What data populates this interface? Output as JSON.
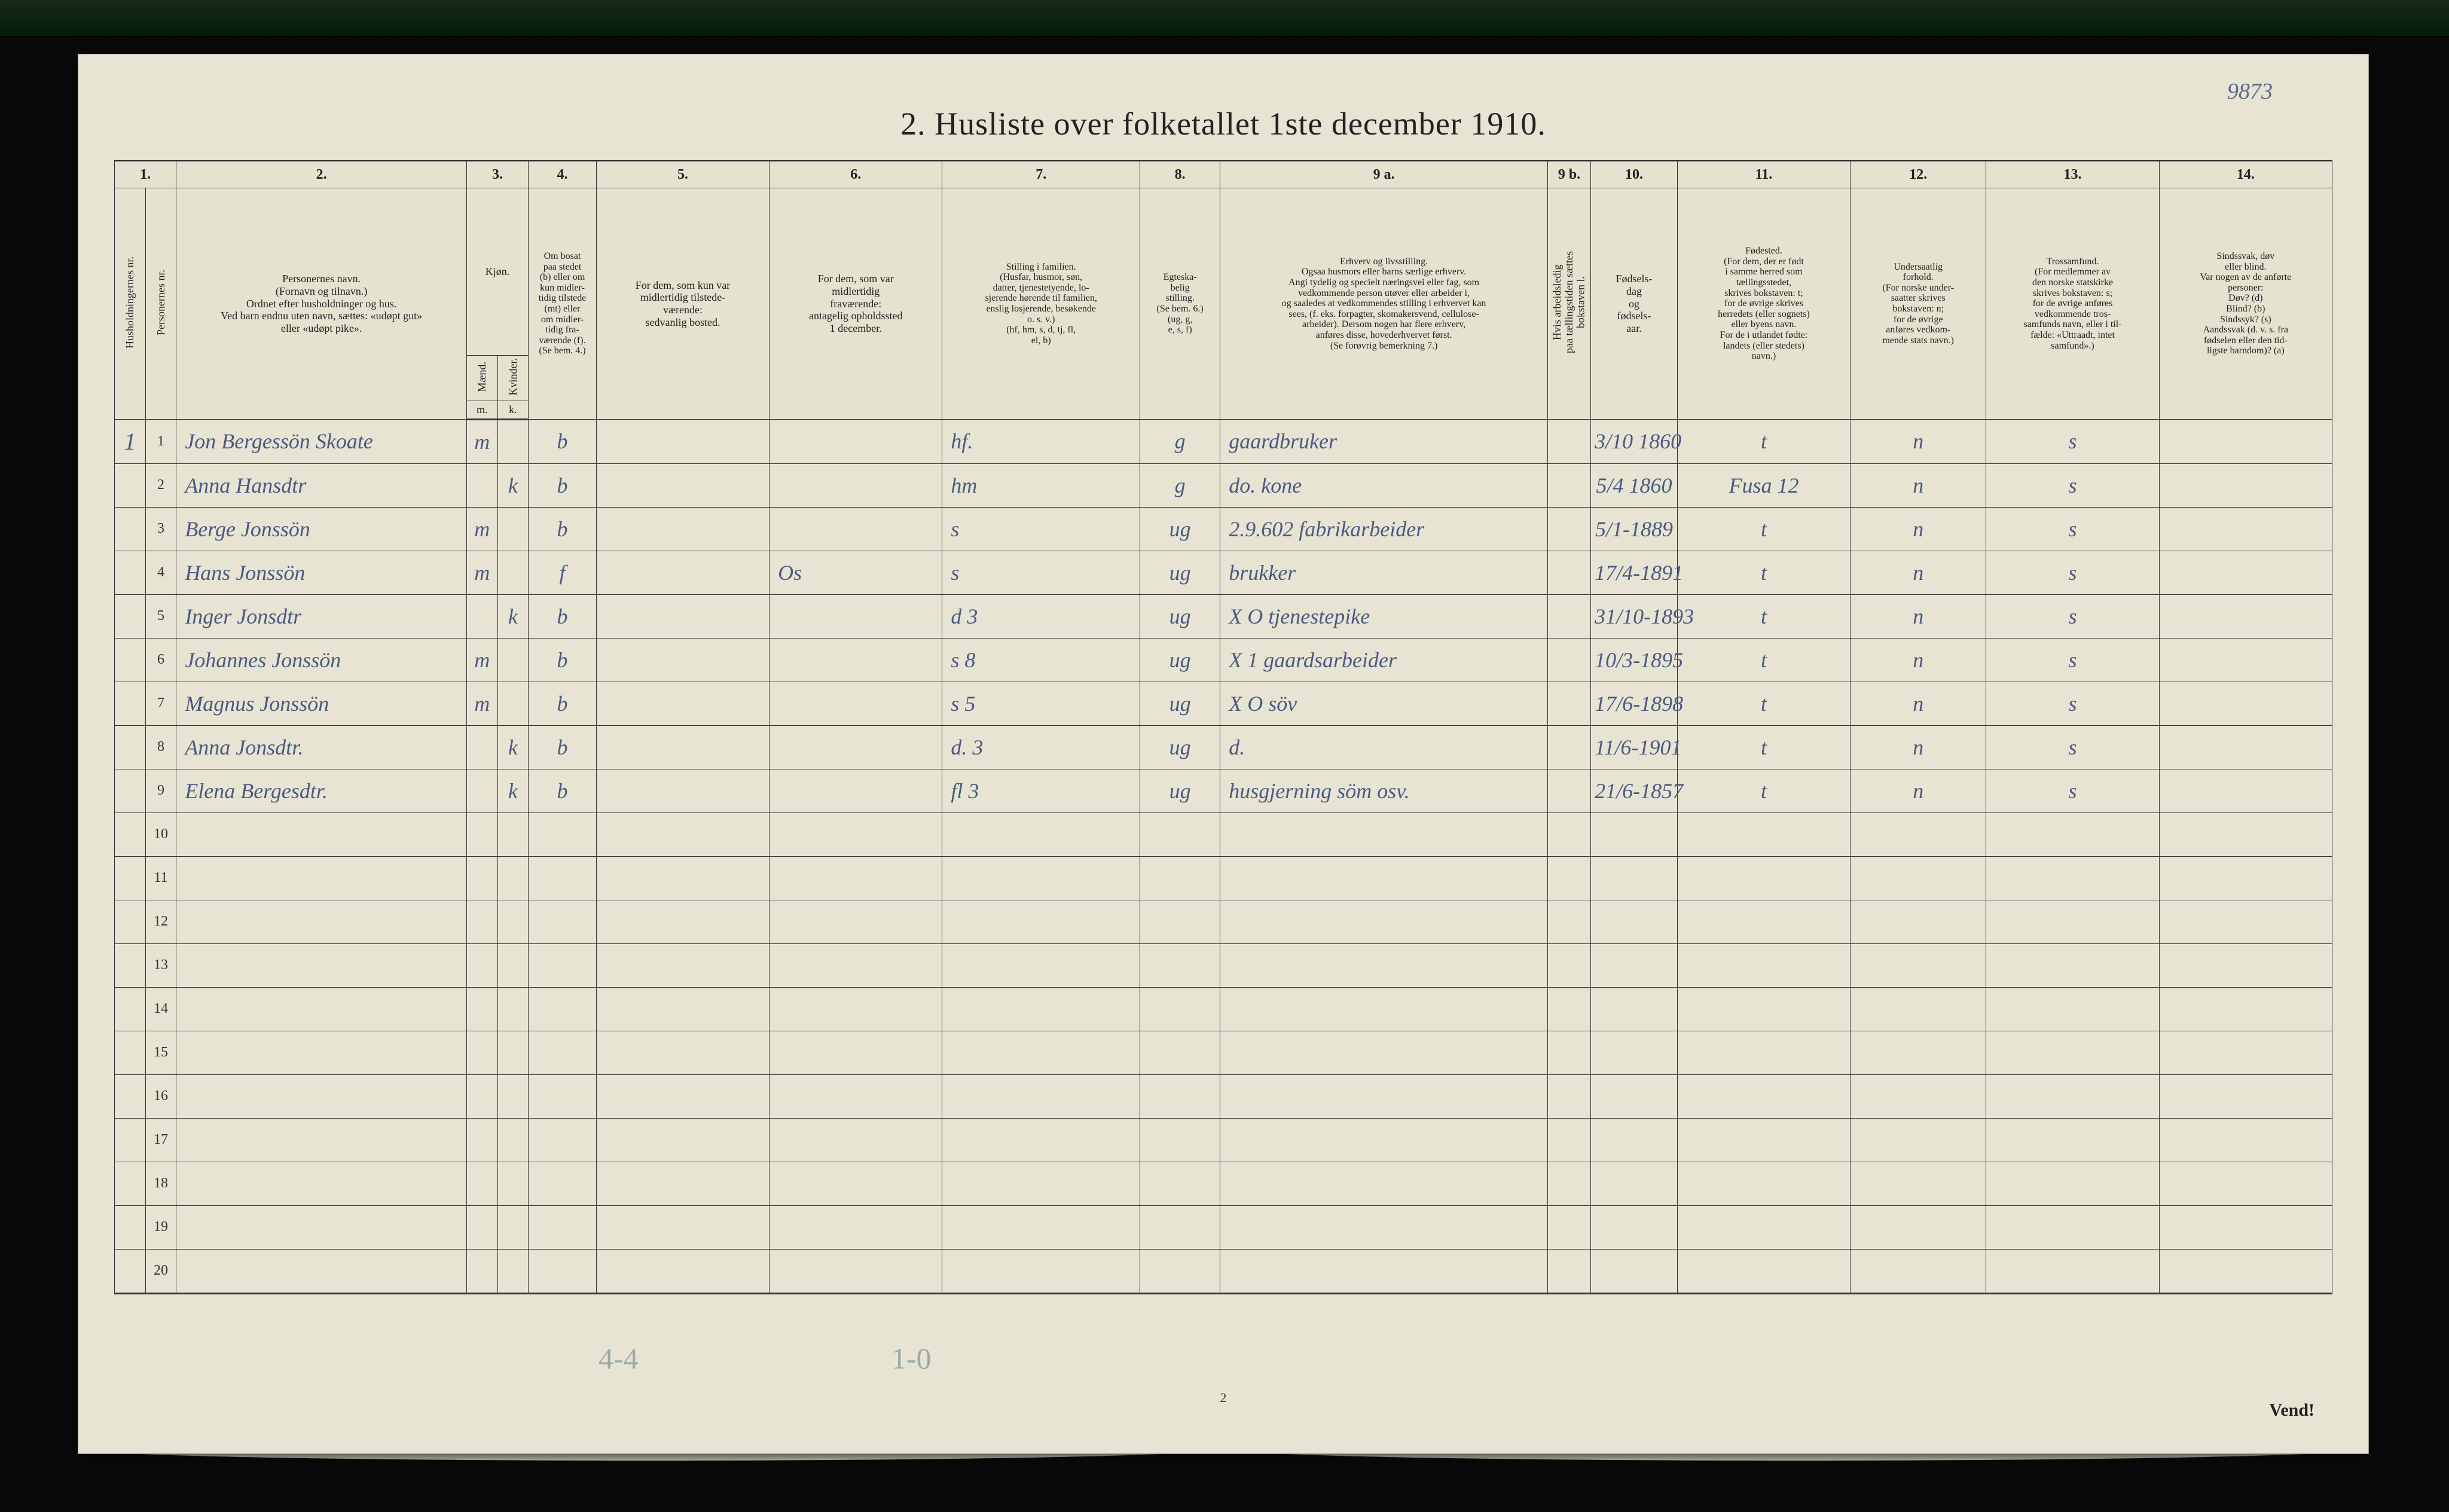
{
  "page": {
    "top_right_number": "9873",
    "title": "2.  Husliste over folketallet 1ste december 1910.",
    "footer_center": "2",
    "footer_right": "Vend!",
    "pencil_left": "4-4",
    "pencil_right": "1-0",
    "background_color": "#e8e4d4",
    "grid_color": "#333333",
    "print_text_color": "#222222",
    "handwriting_color": "#4a5a80",
    "columns": {
      "num_labels": [
        "1.",
        "",
        "2.",
        "3.",
        "",
        "4.",
        "5.",
        "6.",
        "7.",
        "8.",
        "9 a.",
        "9 b.",
        "10.",
        "11.",
        "12.",
        "13.",
        "14."
      ],
      "c1_rot": "Husholdningernes nr.",
      "c1b_rot": "Personernes nr.",
      "c2": "Personernes navn.\n(Fornavn og tilnavn.)\nOrdnet efter husholdninger og hus.\nVed barn endnu uten navn, sættes: «udøpt gut»\neller «udøpt pike».",
      "c3_top": "Kjøn.",
      "c3_m": "Mænd.",
      "c3_k": "Kvinder.",
      "c3_m_abbr": "m.",
      "c3_k_abbr": "k.",
      "c4": "Om bosat\npaa stedet\n(b) eller om\nkun midler-\ntidig tilstede\n(mt) eller\nom midler-\ntidig fra-\nværende (f).\n(Se bem. 4.)",
      "c5": "For dem, som kun var\nmidlertidig tilstede-\nværende:\nsedvanlig bosted.",
      "c6": "For dem, som var\nmidlertidig\nfraværende:\nantagelig opholdssted\n1 december.",
      "c7": "Stilling i familien.\n(Husfar, husmor, søn,\ndatter, tjenestetyende, lo-\nsjerende hørende til familien,\nenslig losjerende, besøkende\no. s. v.)\n(hf, hm, s, d, tj, fl,\nel, b)",
      "c8": "Egteska-\nbelig\nstilling.\n(Se bem. 6.)\n(ug, g,\ne, s, f)",
      "c9a": "Erhverv og livsstilling.\nOgsaa husmors eller barns særlige erhverv.\nAngi tydelig og specielt næringsvei eller fag, som\nvedkommende person utøver eller arbeider i,\nog saaledes at vedkommendes stilling i erhvervet kan\nsees, (f. eks. forpagter, skomakersvend, cellulose-\narbeider). Dersom nogen har flere erhverv,\nanføres disse, hovederhvervet først.\n(Se forøvrig bemerkning 7.)",
      "c9b_rot": "Hvis arbeidsledig\npaa tællingstiden sættes\nbokstaven l.",
      "c10": "Fødsels-\ndag\nog\nfødsels-\naar.",
      "c11": "Fødested.\n(For dem, der er født\ni samme herred som\ntællingsstedet,\nskrives bokstaven: t;\nfor de øvrige skrives\nherredets (eller sognets)\neller byens navn.\nFor de i utlandet fødte:\nlandets (eller stedets)\nnavn.)",
      "c12": "Undersaatlig\nforhold.\n(For norske under-\nsaatter skrives\nbokstaven: n;\nfor de øvrige\nanføres vedkom-\nmende stats navn.)",
      "c13": "Trossamfund.\n(For medlemmer av\nden norske statskirke\nskrives bokstaven: s;\nfor de øvrige anføres\nvedkommende tros-\nsamfunds navn, eller i til-\nfælde: «Uttraadt, intet\nsamfund».)",
      "c14": "Sindssvak, døv\neller blind.\nVar nogen av de anførte\npersoner:\nDøv?         (d)\nBlind?       (b)\nSindssyk?   (s)\nAandssvak (d. v. s. fra\nfødselen eller den tid-\nligste barndom)?  (a)"
    }
  },
  "rows": [
    {
      "hh": "1",
      "pn": "1",
      "name": "Jon Bergessön Skoate",
      "m": "m",
      "k": "",
      "res": "b",
      "temp": "",
      "absent": "",
      "fam": "hf.",
      "mar": "g",
      "occ": "gaardbruker",
      "led": "",
      "birth": "3/10 1860",
      "place": "t",
      "nat": "n",
      "rel": "s",
      "dis": ""
    },
    {
      "hh": "",
      "pn": "2",
      "name": "Anna Hansdtr",
      "m": "",
      "k": "k",
      "res": "b",
      "temp": "",
      "absent": "",
      "fam": "hm",
      "mar": "g",
      "occ": "do.   kone",
      "led": "",
      "birth": "5/4 1860",
      "place": "Fusa 12",
      "nat": "n",
      "rel": "s",
      "dis": ""
    },
    {
      "hh": "",
      "pn": "3",
      "name": "Berge Jonssön",
      "m": "m",
      "k": "",
      "res": "b",
      "temp": "",
      "absent": "",
      "fam": "s",
      "mar": "ug",
      "occ": "2.9.602   fabrikarbeider",
      "led": "",
      "birth": "5/1-1889",
      "place": "t",
      "nat": "n",
      "rel": "s",
      "dis": ""
    },
    {
      "hh": "",
      "pn": "4",
      "name": "Hans Jonssön",
      "m": "m",
      "k": "",
      "res": "f",
      "temp": "",
      "absent": "Os",
      "fam": "s",
      "mar": "ug",
      "occ": "brukker",
      "led": "",
      "birth": "17/4-1891",
      "place": "t",
      "nat": "n",
      "rel": "s",
      "dis": ""
    },
    {
      "hh": "",
      "pn": "5",
      "name": "Inger Jonsdtr",
      "m": "",
      "k": "k",
      "res": "b",
      "temp": "",
      "absent": "",
      "fam": "d    3",
      "mar": "ug",
      "occ": "X O   tjenestepike",
      "led": "",
      "birth": "31/10-1893",
      "place": "t",
      "nat": "n",
      "rel": "s",
      "dis": ""
    },
    {
      "hh": "",
      "pn": "6",
      "name": "Johannes Jonssön",
      "m": "m",
      "k": "",
      "res": "b",
      "temp": "",
      "absent": "",
      "fam": "s    8",
      "mar": "ug",
      "occ": "X 1   gaardsarbeider",
      "led": "",
      "birth": "10/3-1895",
      "place": "t",
      "nat": "n",
      "rel": "s",
      "dis": ""
    },
    {
      "hh": "",
      "pn": "7",
      "name": "Magnus Jonssön",
      "m": "m",
      "k": "",
      "res": "b",
      "temp": "",
      "absent": "",
      "fam": "s    5",
      "mar": "ug",
      "occ": "X O      söv",
      "led": "",
      "birth": "17/6-1898",
      "place": "t",
      "nat": "n",
      "rel": "s",
      "dis": ""
    },
    {
      "hh": "",
      "pn": "8",
      "name": "Anna Jonsdtr.",
      "m": "",
      "k": "k",
      "res": "b",
      "temp": "",
      "absent": "",
      "fam": "d.   3",
      "mar": "ug",
      "occ": "d.",
      "led": "",
      "birth": "11/6-1901",
      "place": "t",
      "nat": "n",
      "rel": "s",
      "dis": ""
    },
    {
      "hh": "",
      "pn": "9",
      "name": "Elena Bergesdtr.",
      "m": "",
      "k": "k",
      "res": "b",
      "temp": "",
      "absent": "",
      "fam": "fl   3",
      "mar": "ug",
      "occ": "husgjerning  söm osv.",
      "led": "",
      "birth": "21/6-1857",
      "place": "t",
      "nat": "n",
      "rel": "s",
      "dis": ""
    }
  ],
  "empty_rows": {
    "from": 10,
    "to": 20
  }
}
